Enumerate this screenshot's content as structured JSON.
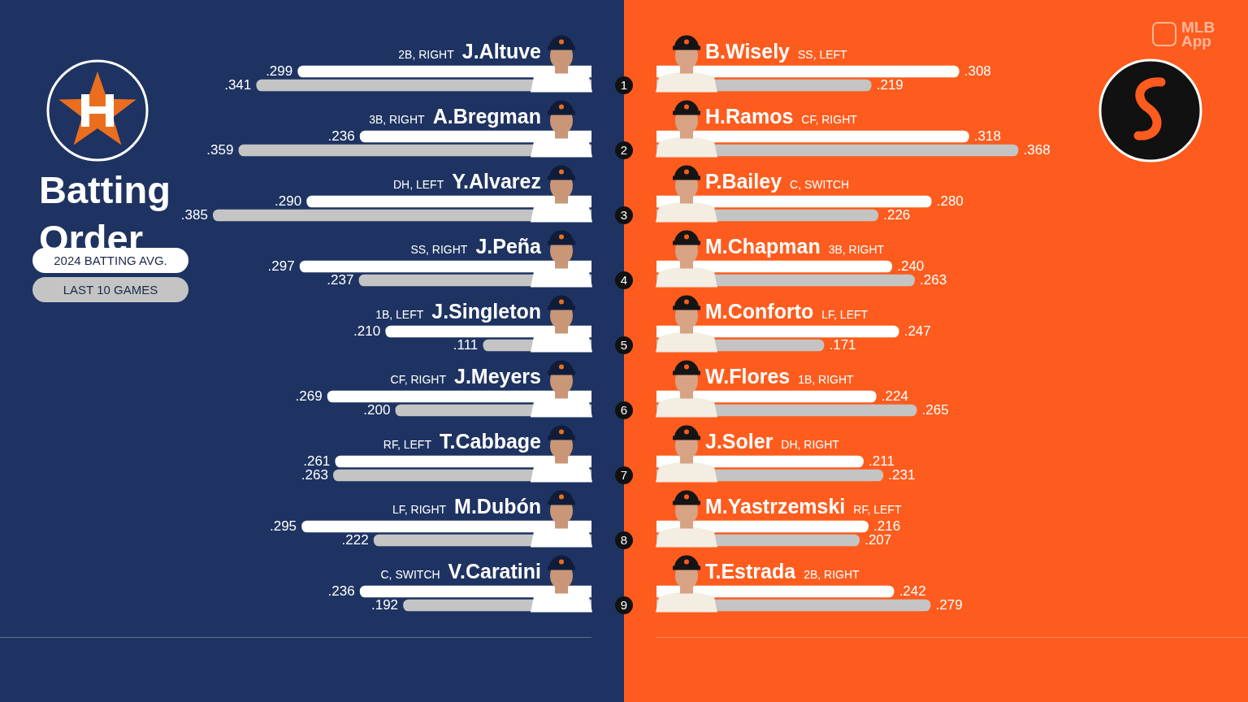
{
  "title": "Batting Order",
  "watermark": "MLB App",
  "batting_order": [
    1,
    2,
    3,
    4,
    5,
    6,
    7,
    8,
    9
  ],
  "chart_data": [
    {
      "type": "bar",
      "orientation": "horizontal",
      "legend": "left",
      "tick_labels": false,
      "data_labels": true,
      "xlim": [
        0,
        0.6
      ],
      "categories": [
        "J.Altuve",
        "A.Bregman",
        "Y.Alvarez",
        "J.Peña",
        "J.Singleton",
        "J.Meyers",
        "T.Cabbage",
        "M.Dubón",
        "V.Caratini"
      ],
      "positions": [
        "2B, RIGHT",
        "3B, RIGHT",
        "DH, LEFT",
        "SS, RIGHT",
        "1B, LEFT",
        "CF, RIGHT",
        "RF, LEFT",
        "LF, RIGHT",
        "C, SWITCH"
      ],
      "series": [
        {
          "name": "2024 BATTING AVG.",
          "color": "#ffffff",
          "values": [
            0.299,
            0.236,
            0.29,
            0.297,
            0.21,
            0.269,
            0.261,
            0.295,
            0.236
          ],
          "value_labels": [
            ".299",
            ".236",
            ".290",
            ".297",
            ".210",
            ".269",
            ".261",
            ".295",
            ".236"
          ]
        },
        {
          "name": "LAST 10 GAMES",
          "color": "#c4c4c4",
          "values": [
            0.341,
            0.359,
            0.385,
            0.237,
            0.111,
            0.2,
            0.263,
            0.222,
            0.192
          ],
          "value_labels": [
            ".341",
            ".359",
            ".385",
            ".237",
            ".111",
            ".200",
            ".263",
            ".222",
            ".192"
          ]
        }
      ]
    },
    {
      "type": "bar",
      "orientation": "horizontal",
      "tick_labels": false,
      "data_labels": true,
      "xlim": [
        0,
        0.6
      ],
      "categories": [
        "B.Wisely",
        "H.Ramos",
        "P.Bailey",
        "M.Chapman",
        "M.Conforto",
        "W.Flores",
        "J.Soler",
        "M.Yastrzemski",
        "T.Estrada"
      ],
      "positions": [
        "SS, LEFT",
        "CF, RIGHT",
        "C, SWITCH",
        "3B, RIGHT",
        "LF, LEFT",
        "1B, RIGHT",
        "DH, RIGHT",
        "RF, LEFT",
        "2B, RIGHT"
      ],
      "series": [
        {
          "name": "2024 BATTING AVG.",
          "color": "#ffffff",
          "values": [
            0.308,
            0.318,
            0.28,
            0.24,
            0.247,
            0.224,
            0.211,
            0.216,
            0.242
          ],
          "value_labels": [
            ".308",
            ".318",
            ".280",
            ".240",
            ".247",
            ".224",
            ".211",
            ".216",
            ".242"
          ]
        },
        {
          "name": "LAST 10 GAMES",
          "color": "#c4c4c4",
          "values": [
            0.219,
            0.368,
            0.226,
            0.263,
            0.171,
            0.265,
            0.231,
            0.207,
            0.279
          ],
          "value_labels": [
            ".219",
            ".368",
            ".226",
            ".263",
            ".171",
            ".265",
            ".231",
            ".207",
            ".279"
          ]
        }
      ]
    }
  ]
}
